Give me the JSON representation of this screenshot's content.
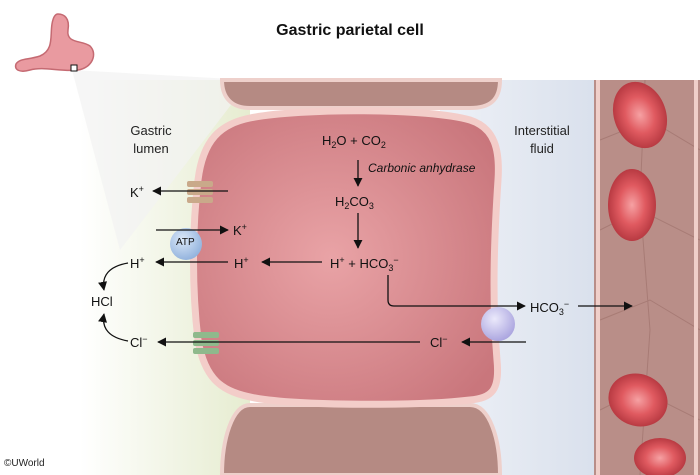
{
  "title": "Gastric parietal cell",
  "regions": {
    "lumen": [
      "Gastric",
      "lumen"
    ],
    "interstitial": [
      "Interstitial",
      "fluid"
    ]
  },
  "reaction": {
    "h2o": "H",
    "h2o_2": "O + CO",
    "enzyme": "Carbonic anhydrase",
    "h2co3_a": "H",
    "h2co3_b": "CO",
    "proton": "H",
    "bicarb": "HCO"
  },
  "ions": {
    "k_out": "K",
    "k_in": "K",
    "h_lumen": "H",
    "h_cell": "H",
    "hcl": "HCl",
    "cl_lumen": "Cl",
    "cl_cell": "Cl",
    "hco3_out": "HCO",
    "atp": "ATP"
  },
  "copyright": "©UWorld",
  "colors": {
    "cytoplasm": "#d98d92",
    "membrane": "#f2c7c4",
    "lumen": "#eef3dc",
    "interstitial": "#e6ebf3",
    "rbc": "#e0585e",
    "pump": "#a9c4e6",
    "exchanger": "#c7c3ec"
  }
}
